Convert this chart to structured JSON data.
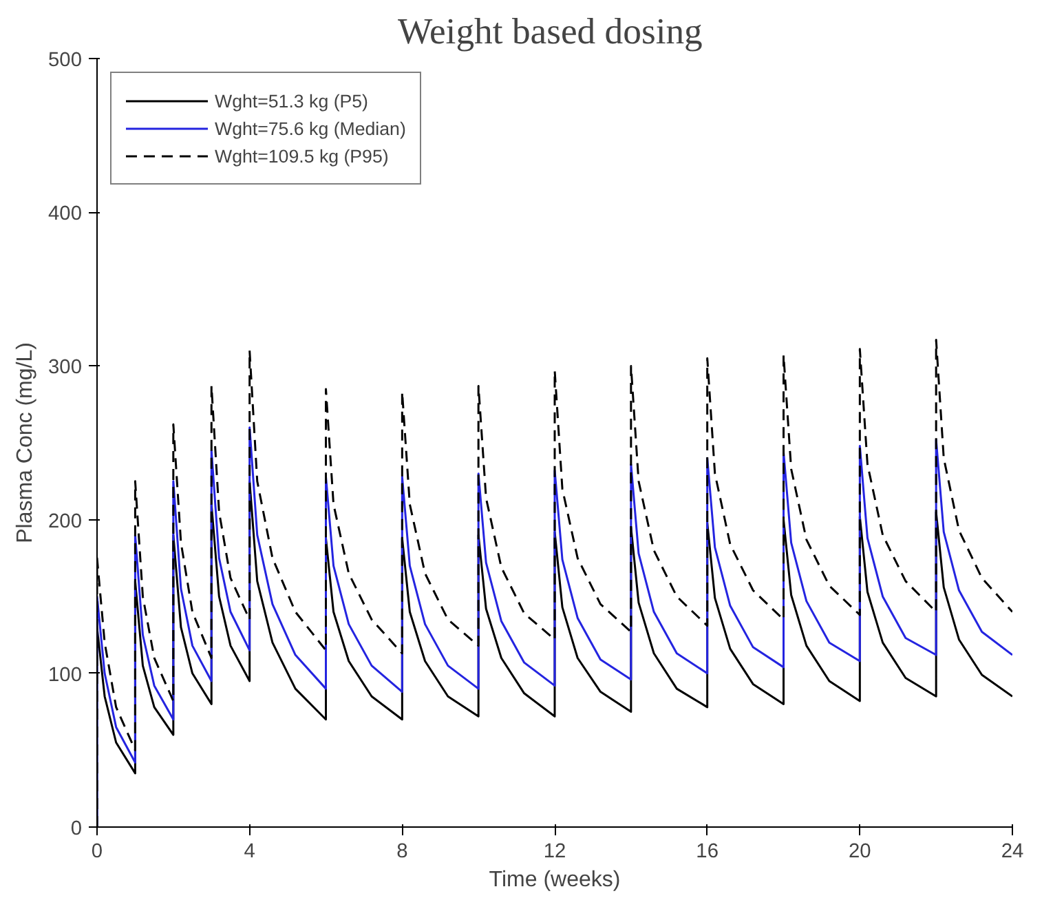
{
  "chart_data": {
    "type": "line",
    "title": "Weight  based dosing",
    "xlabel": "Time (weeks)",
    "ylabel": "Plasma Conc (mg/L)",
    "x": [
      0,
      0,
      0.2,
      0.5,
      1,
      1,
      1.2,
      1.5,
      2,
      2,
      2.2,
      2.5,
      3,
      3,
      3.2,
      3.5,
      4,
      4,
      4.2,
      4.6,
      5.2,
      6,
      6,
      6.2,
      6.6,
      7.2,
      8,
      8,
      8.2,
      8.6,
      9.2,
      10,
      10,
      10.2,
      10.6,
      11.2,
      12,
      12,
      12.2,
      12.6,
      13.2,
      14,
      14,
      14.2,
      14.6,
      15.2,
      16,
      16,
      16.2,
      16.6,
      17.2,
      18,
      18,
      18.2,
      18.6,
      19.2,
      20,
      20,
      20.2,
      20.6,
      21.2,
      22,
      22,
      22.2,
      22.6,
      23.2,
      24
    ],
    "series": [
      {
        "name": "Wght=51.3 kg (P5)",
        "color": "#000000",
        "line_style": "solid",
        "values": [
          0,
          130,
          85,
          55,
          35,
          160,
          105,
          78,
          60,
          190,
          130,
          100,
          80,
          210,
          150,
          118,
          95,
          225,
          160,
          120,
          90,
          70,
          188,
          140,
          108,
          85,
          70,
          188,
          140,
          108,
          85,
          72,
          190,
          142,
          110,
          87,
          72,
          192,
          143,
          110,
          88,
          75,
          195,
          146,
          113,
          90,
          78,
          198,
          149,
          116,
          93,
          80,
          200,
          151,
          118,
          95,
          82,
          202,
          153,
          120,
          97,
          85,
          205,
          156,
          122,
          99,
          85
        ]
      },
      {
        "name": "Wght=75.6 kg (Median)",
        "color": "#2424e0",
        "line_style": "solid",
        "values": [
          0,
          150,
          100,
          65,
          42,
          190,
          125,
          92,
          70,
          225,
          155,
          118,
          95,
          245,
          175,
          140,
          115,
          260,
          190,
          145,
          112,
          90,
          228,
          170,
          132,
          105,
          88,
          228,
          170,
          132,
          105,
          90,
          230,
          172,
          134,
          107,
          92,
          232,
          174,
          136,
          109,
          96,
          236,
          178,
          140,
          113,
          100,
          240,
          182,
          144,
          117,
          104,
          244,
          185,
          147,
          120,
          108,
          248,
          188,
          150,
          123,
          112,
          252,
          192,
          154,
          127,
          112
        ]
      },
      {
        "name": "Wght=109.5 kg (P95)",
        "color": "#000000",
        "line_style": "dashed",
        "values": [
          0,
          175,
          120,
          78,
          50,
          225,
          150,
          110,
          82,
          262,
          185,
          140,
          110,
          287,
          205,
          162,
          135,
          310,
          225,
          175,
          140,
          115,
          285,
          210,
          165,
          135,
          113,
          283,
          210,
          165,
          135,
          118,
          287,
          214,
          169,
          139,
          122,
          297,
          220,
          175,
          145,
          127,
          300,
          225,
          180,
          150,
          131,
          305,
          230,
          184,
          154,
          135,
          307,
          233,
          187,
          157,
          138,
          311,
          236,
          190,
          160,
          140,
          317,
          240,
          193,
          162,
          140
        ]
      }
    ],
    "xlim": [
      0,
      24
    ],
    "ylim": [
      0,
      500
    ],
    "xticks": [
      0,
      4,
      8,
      12,
      16,
      20,
      24
    ],
    "yticks": [
      0,
      100,
      200,
      300,
      400,
      500
    ],
    "grid": false,
    "legend": "top left"
  }
}
